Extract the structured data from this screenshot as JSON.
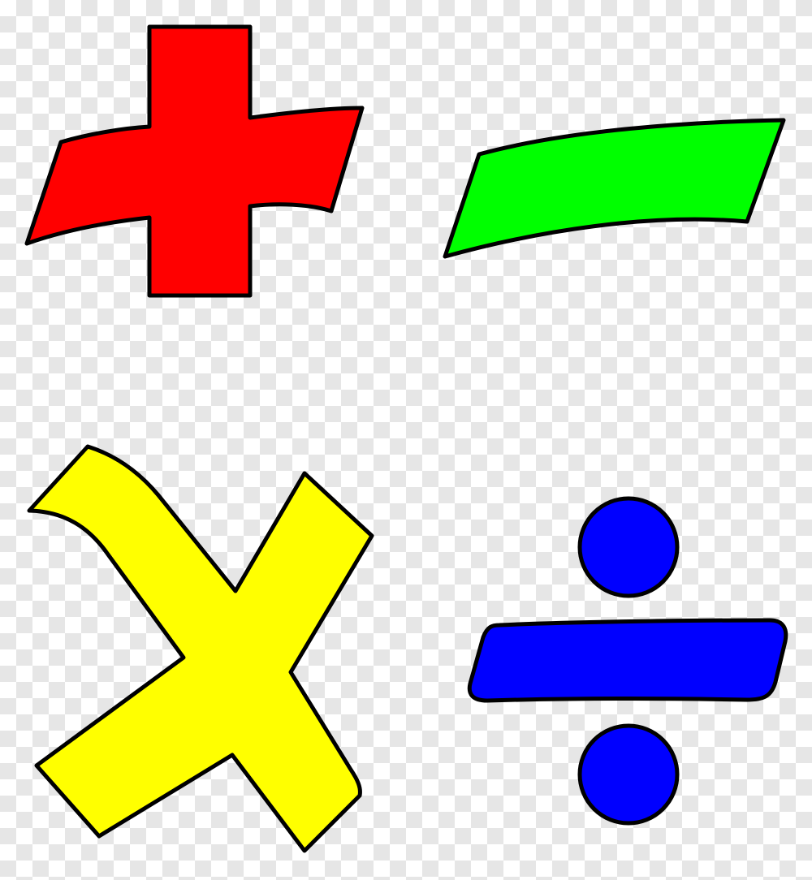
{
  "symbols": [
    {
      "name": "plus-sign",
      "color": "#ff0000"
    },
    {
      "name": "minus-sign",
      "color": "#00ff00"
    },
    {
      "name": "multiply-sign",
      "color": "#ffff00"
    },
    {
      "name": "divide-sign",
      "color": "#0000ff"
    }
  ],
  "background": "transparent-checkerboard"
}
